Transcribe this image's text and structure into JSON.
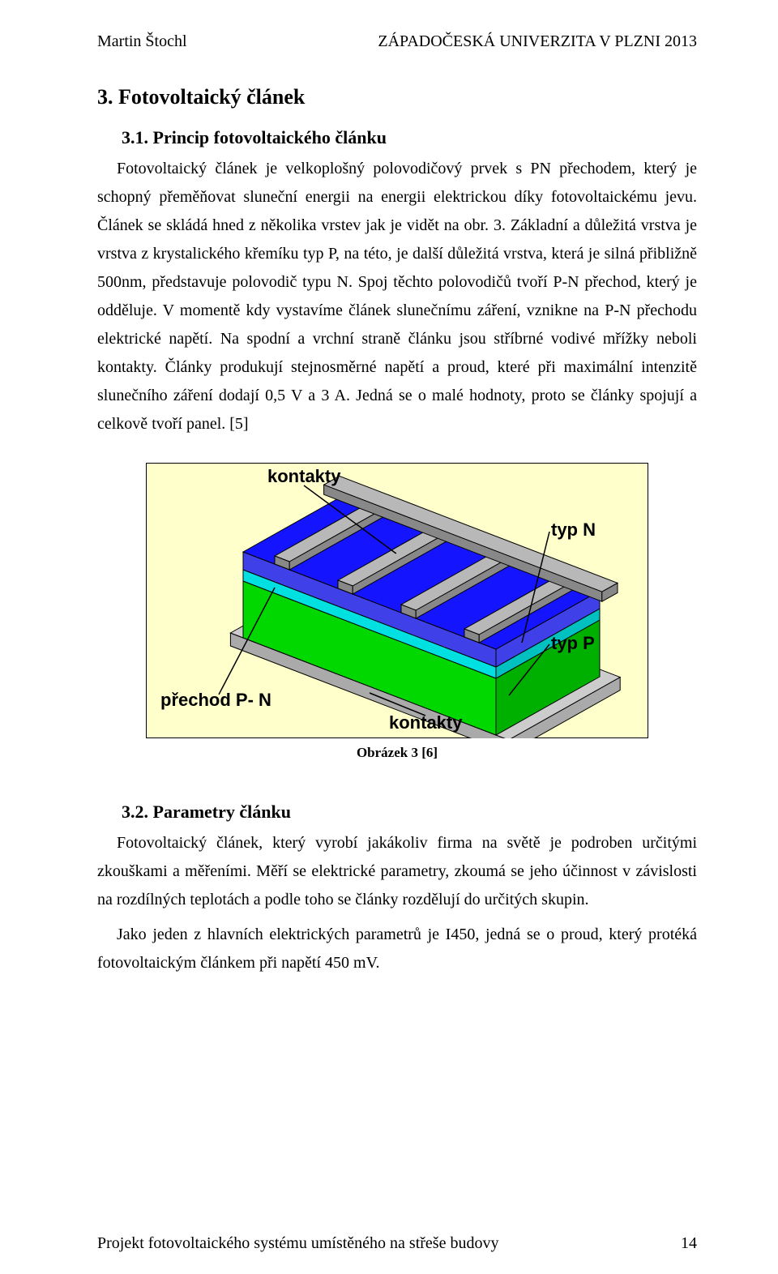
{
  "header": {
    "author": "Martin Štochl",
    "institution": "ZÁPADOČESKÁ UNIVERZITA V PLZNI 2013"
  },
  "section3": {
    "heading": "3. Fotovoltaický článek",
    "sub1_heading": "3.1. Princip fotovoltaického článku",
    "sub1_para": "Fotovoltaický článek je velkoplošný polovodičový prvek s PN přechodem, který je schopný přeměňovat sluneční energii na energii elektrickou díky fotovoltaickému jevu. Článek se skládá hned z několika vrstev jak je vidět na obr. 3. Základní a důležitá vrstva je vrstva z krystalického křemíku typ P, na této, je další důležitá vrstva, která je silná přibližně 500nm, představuje polovodič typu N. Spoj těchto polovodičů tvoří P-N přechod, který je odděluje. V momentě kdy vystavíme článek slunečnímu záření, vznikne na P-N přechodu elektrické napětí. Na spodní a vrchní straně článku jsou stříbrné vodivé mřížky neboli kontakty. Články produkují stejnosměrné napětí a proud, které při maximální intenzitě slunečního záření dodají 0,5 V a 3 A. Jedná se o malé hodnoty, proto se články spojují a celkově tvoří panel. [5]",
    "figure_caption": "Obrázek 3 [6]",
    "sub2_heading": "3.2. Parametry článku",
    "sub2_para1": "Fotovoltaický článek, který vyrobí jakákoliv firma na světě je podroben určitými zkouškami a měřeními. Měří se elektrické parametry, zkoumá se jeho účinnost v závislosti na rozdílných teplotách a podle toho se články rozdělují do určitých skupin.",
    "sub2_para2": "Jako jeden z hlavních elektrických parametrů je I450, jedná se o proud, který protéká fotovoltaickým článkem při napětí 450 mV."
  },
  "diagram": {
    "background": "#ffffcc",
    "border": "#000000",
    "labels": {
      "kontakty_top": "kontakty",
      "typ_n": "typ N",
      "typ_p": "typ P",
      "prechod": "přechod P- N",
      "kontakty_bottom": "kontakty"
    },
    "colors": {
      "grid_top": "#b8b8b8",
      "grid_shadow": "#888888",
      "layer_n_top": "#1414ff",
      "layer_n_side": "#4040e8",
      "layer_mid_top": "#00e0e0",
      "layer_mid_side": "#00c0c0",
      "layer_p_top": "#00d800",
      "layer_p_side": "#00b000",
      "base_top": "#cccccc",
      "base_side": "#aaaaaa",
      "label_font": "#000000"
    },
    "label_fontsize": 22
  },
  "footer": {
    "project": "Projekt fotovoltaického systému umístěného na střeše budovy",
    "page": "14"
  }
}
